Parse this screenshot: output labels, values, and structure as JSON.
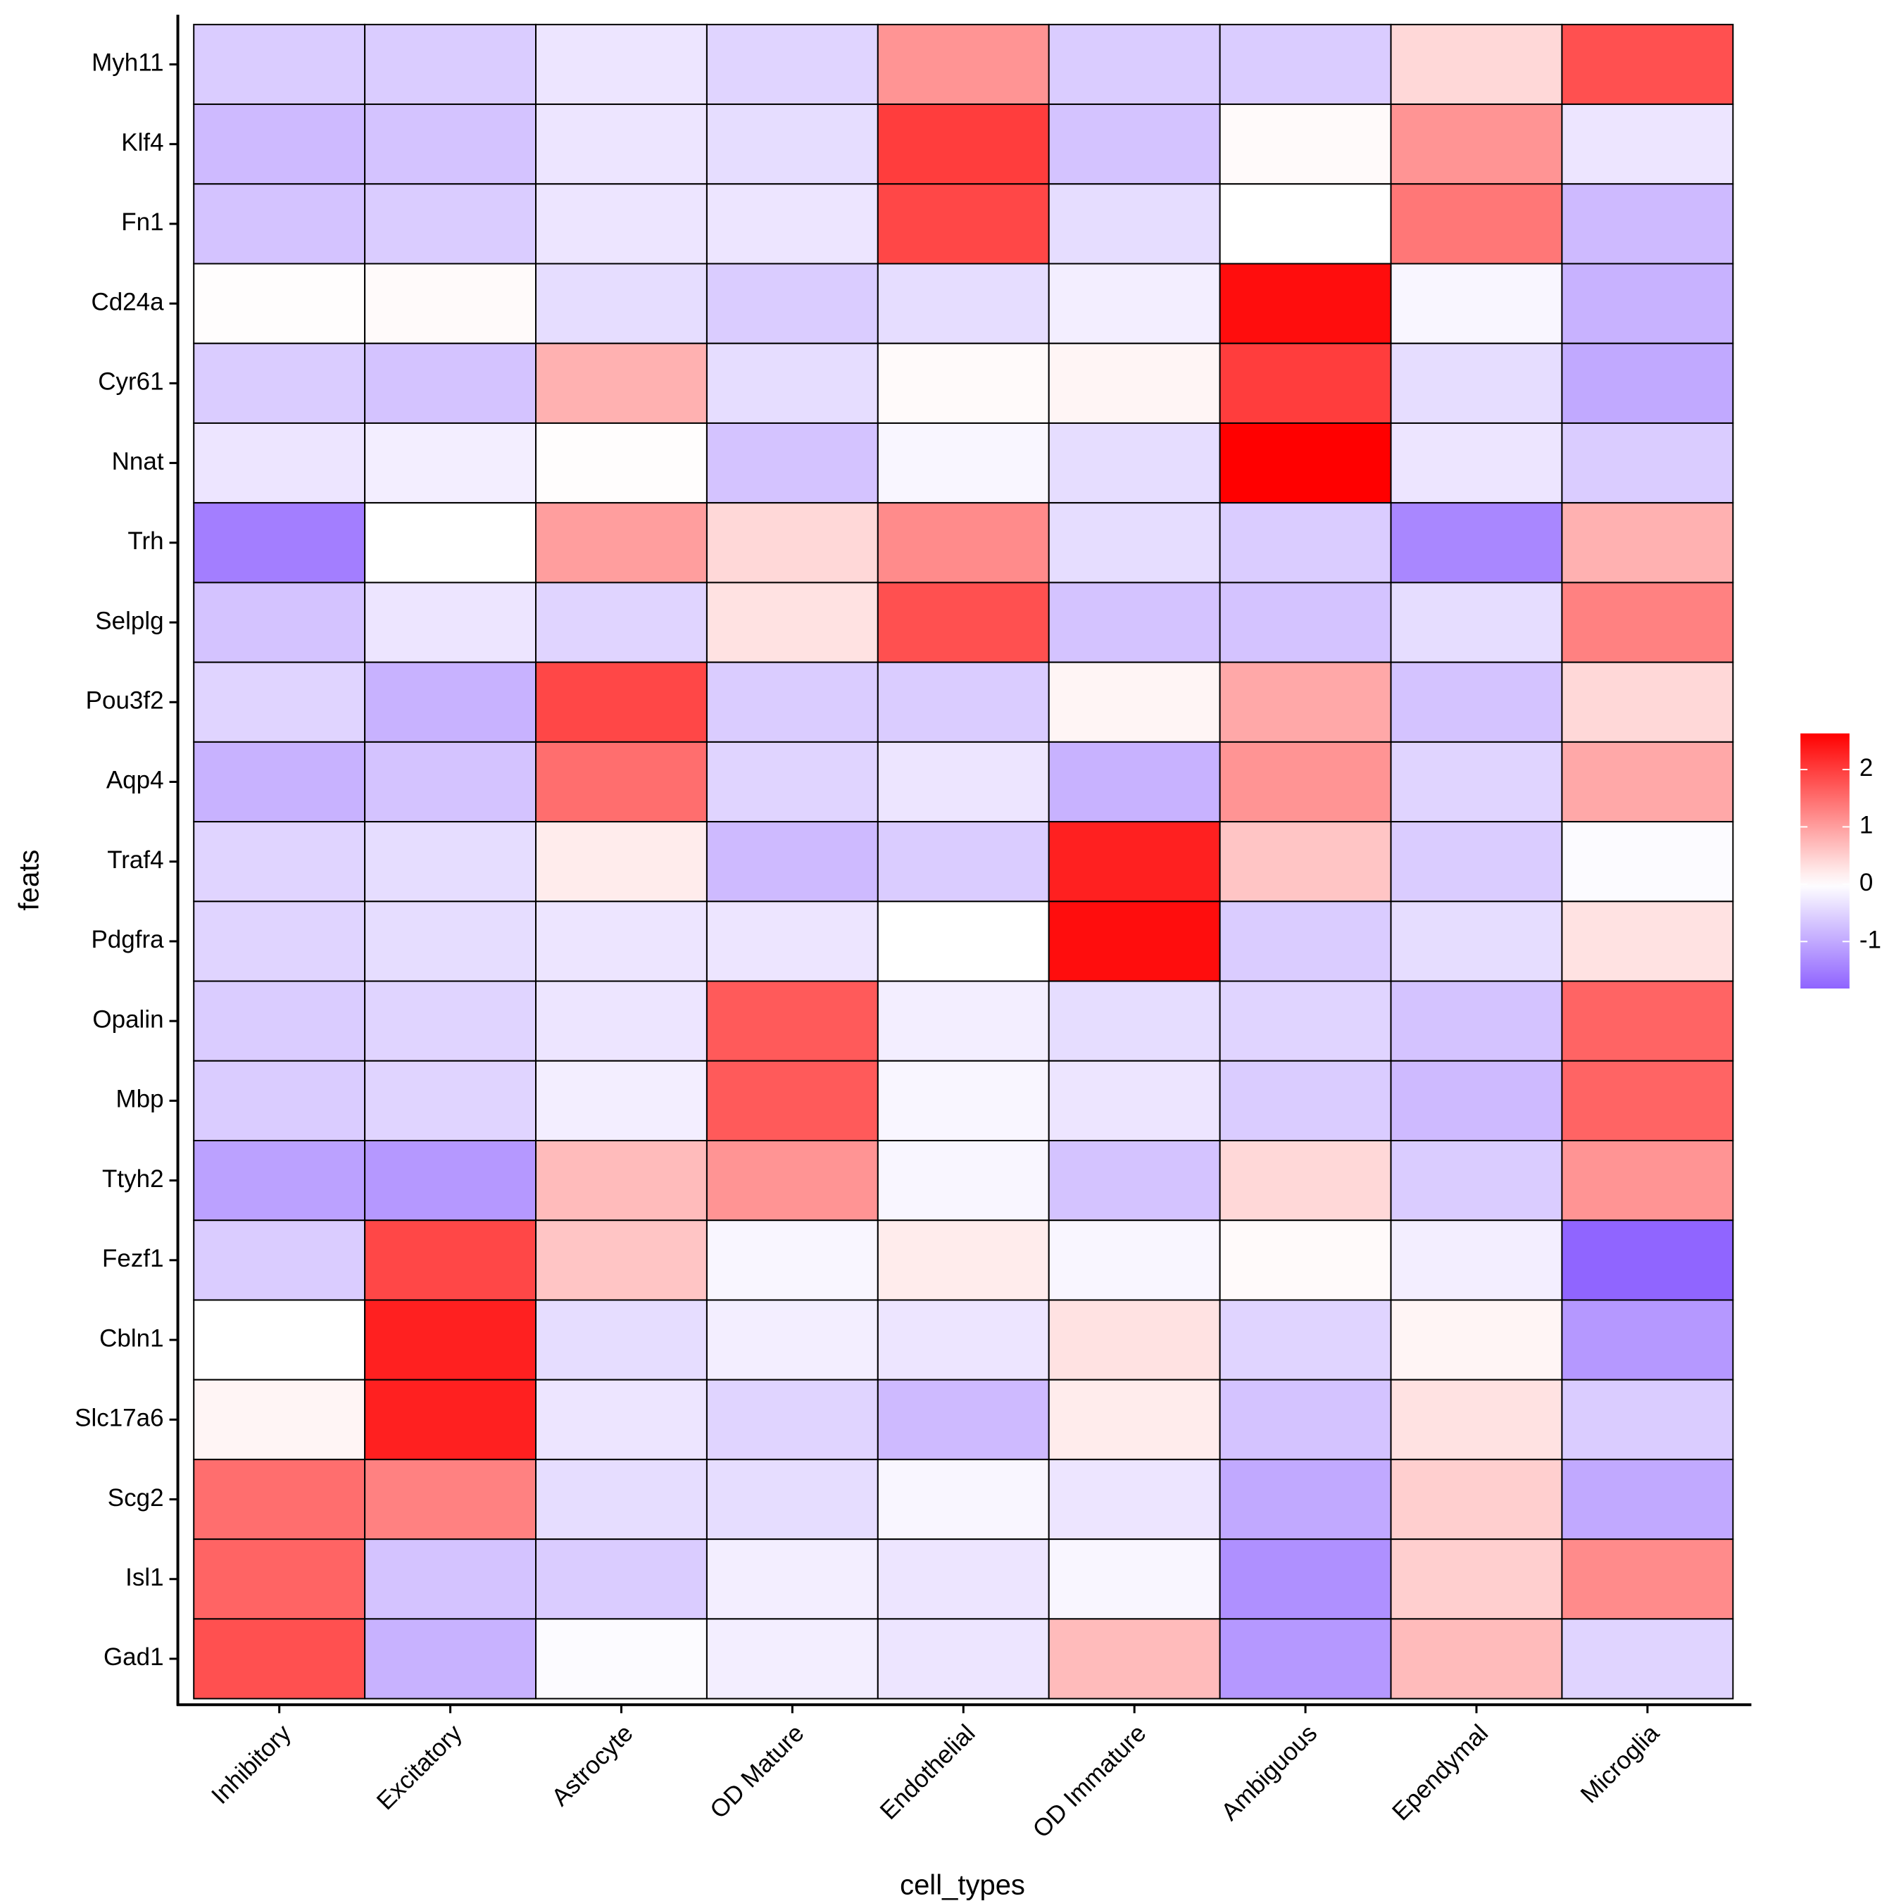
{
  "chart_data": {
    "type": "heatmap",
    "x_label": "cell_types",
    "y_label": "feats",
    "x_categories": [
      "Inhibitory",
      "Excitatory",
      "Astrocyte",
      "OD Mature",
      "Endothelial",
      "OD Immature",
      "Ambiguous",
      "Ependymal",
      "Microglia"
    ],
    "y_categories": [
      "Myh11",
      "Klf4",
      "Fn1",
      "Cd24a",
      "Cyr61",
      "Nnat",
      "Trh",
      "Selplg",
      "Pou3f2",
      "Aqp4",
      "Traf4",
      "Pdgfra",
      "Opalin",
      "Mbp",
      "Ttyh2",
      "Fezf1",
      "Cbln1",
      "Slc17a6",
      "Scg2",
      "Isl1",
      "Gad1"
    ],
    "values": [
      [
        -0.6,
        -0.6,
        -0.3,
        -0.5,
        1.1,
        -0.6,
        -0.6,
        0.4,
        1.8
      ],
      [
        -0.8,
        -0.7,
        -0.3,
        -0.4,
        2.0,
        -0.7,
        0.05,
        1.1,
        -0.3
      ],
      [
        -0.7,
        -0.6,
        -0.3,
        -0.3,
        1.9,
        -0.4,
        0.0,
        1.4,
        -0.8
      ],
      [
        0.02,
        0.05,
        -0.4,
        -0.6,
        -0.4,
        -0.2,
        2.5,
        -0.1,
        -0.9
      ],
      [
        -0.6,
        -0.7,
        0.8,
        -0.4,
        0.05,
        0.1,
        2.0,
        -0.4,
        -1.0
      ],
      [
        -0.3,
        -0.2,
        0.02,
        -0.7,
        -0.1,
        -0.4,
        2.63,
        -0.3,
        -0.6
      ],
      [
        -1.5,
        0.0,
        1.0,
        0.4,
        1.2,
        -0.4,
        -0.6,
        -1.4,
        0.8
      ],
      [
        -0.7,
        -0.3,
        -0.5,
        0.3,
        1.8,
        -0.7,
        -0.7,
        -0.4,
        1.3
      ],
      [
        -0.5,
        -0.9,
        1.9,
        -0.6,
        -0.6,
        0.1,
        0.9,
        -0.7,
        0.4
      ],
      [
        -0.9,
        -0.7,
        1.5,
        -0.5,
        -0.3,
        -0.9,
        1.1,
        -0.5,
        0.9
      ],
      [
        -0.5,
        -0.4,
        0.2,
        -0.8,
        -0.6,
        2.3,
        0.6,
        -0.6,
        -0.05
      ],
      [
        -0.5,
        -0.4,
        -0.3,
        -0.3,
        0.0,
        2.5,
        -0.6,
        -0.4,
        0.3
      ],
      [
        -0.6,
        -0.5,
        -0.3,
        1.7,
        -0.2,
        -0.4,
        -0.5,
        -0.7,
        1.6
      ],
      [
        -0.6,
        -0.5,
        -0.2,
        1.7,
        -0.1,
        -0.3,
        -0.6,
        -0.8,
        1.6
      ],
      [
        -1.1,
        -1.2,
        0.7,
        1.1,
        -0.1,
        -0.7,
        0.4,
        -0.6,
        1.1
      ],
      [
        -0.6,
        1.9,
        0.6,
        -0.1,
        0.2,
        -0.1,
        0.05,
        -0.2,
        -1.8
      ],
      [
        0.0,
        2.3,
        -0.4,
        -0.2,
        -0.3,
        0.3,
        -0.5,
        0.1,
        -1.2
      ],
      [
        0.1,
        2.3,
        -0.3,
        -0.5,
        -0.8,
        0.2,
        -0.7,
        0.3,
        -0.6
      ],
      [
        1.5,
        1.3,
        -0.4,
        -0.4,
        -0.1,
        -0.3,
        -1.0,
        0.5,
        -1.0
      ],
      [
        1.6,
        -0.7,
        -0.6,
        -0.2,
        -0.3,
        -0.1,
        -1.3,
        0.5,
        1.2
      ],
      [
        1.8,
        -0.9,
        -0.05,
        -0.2,
        -0.3,
        0.7,
        -1.2,
        0.7,
        -0.5
      ]
    ],
    "color_scale": {
      "low": "#8f63ff",
      "mid": "#ffffff",
      "high": "#ff0000",
      "lim": [
        -1.82,
        2.63
      ],
      "ticks": [
        -1,
        0,
        1,
        2
      ]
    }
  }
}
